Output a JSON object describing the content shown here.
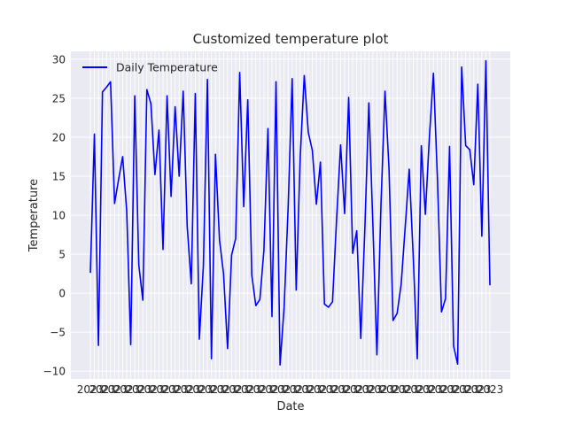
{
  "chart_data": {
    "type": "line",
    "title": "Customized temperature plot",
    "xlabel": "Date",
    "ylabel": "Temperature",
    "ylim": [
      -11,
      31
    ],
    "yticks": [
      -10,
      -5,
      0,
      5,
      10,
      15,
      20,
      25,
      30
    ],
    "grid": true,
    "legend_position": "top-left",
    "series": [
      {
        "name": "Daily Temperature",
        "color": "#0000ff",
        "values": [
          2.6,
          20.4,
          -6.7,
          25.8,
          26.4,
          27.1,
          11.5,
          14.6,
          17.5,
          10.6,
          -6.6,
          25.3,
          3.6,
          -0.9,
          26.1,
          24.3,
          15.2,
          20.9,
          5.6,
          25.3,
          12.4,
          23.9,
          15.0,
          25.9,
          8.5,
          1.2,
          25.6,
          -5.9,
          3.5,
          27.4,
          -8.4,
          17.8,
          6.8,
          2.5,
          -7.1,
          4.9,
          7.0,
          28.3,
          11.1,
          24.8,
          2.3,
          -1.6,
          -0.8,
          5.5,
          21.1,
          -3.0,
          27.1,
          -9.2,
          -1.9,
          10.9,
          27.5,
          0.4,
          17.5,
          27.9,
          20.6,
          18.3,
          11.4,
          16.8,
          -1.4,
          -1.8,
          -1.1,
          9.4,
          19.0,
          10.2,
          25.1,
          5.1,
          8.0,
          -5.8,
          8.1,
          24.4,
          8.8,
          -7.9,
          11.2,
          25.9,
          16.0,
          -3.5,
          -2.6,
          1.1,
          8.4,
          15.9,
          4.7,
          -8.4,
          18.9,
          10.1,
          20.0,
          28.2,
          14.6,
          -2.4,
          -0.7,
          18.8,
          -6.8,
          -9.1,
          29.0,
          18.9,
          18.4,
          13.9,
          26.8,
          7.3,
          29.8,
          1.0
        ]
      }
    ]
  }
}
